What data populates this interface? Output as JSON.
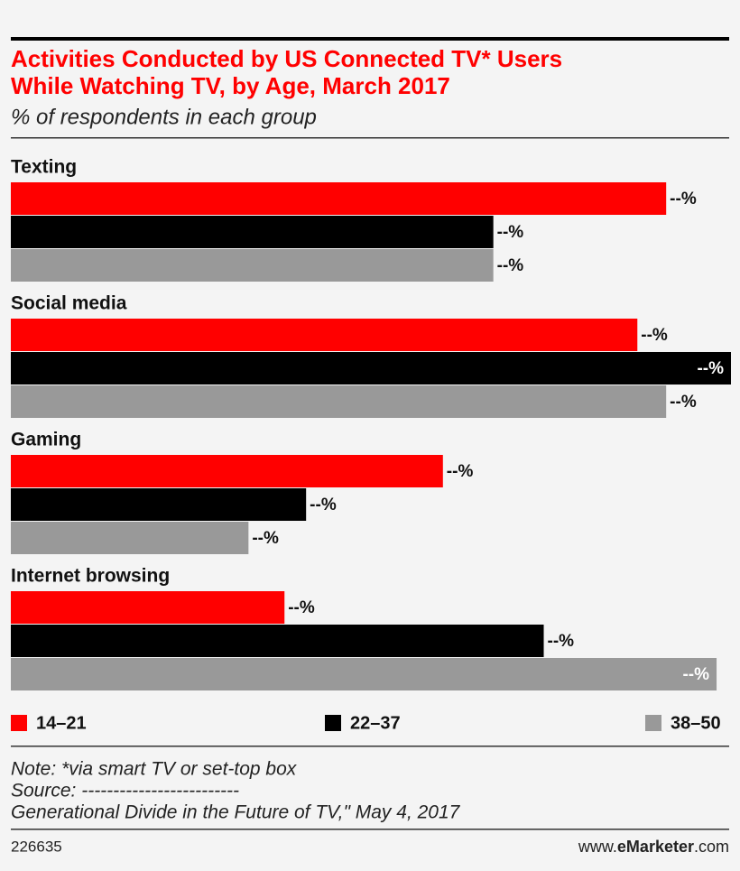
{
  "chart_data": {
    "type": "bar",
    "orientation": "horizontal",
    "title": [
      "Activities Conducted by US Connected TV* Users",
      "While Watching TV, by Age, March 2017"
    ],
    "subtitle": "% of respondents in each group",
    "categories": [
      "Texting",
      "Social media",
      "Gaming",
      "Internet browsing"
    ],
    "series": [
      {
        "name": "14–21",
        "color": "#ff0000",
        "values": [
          91,
          87,
          60,
          38
        ],
        "value_labels": [
          "--%",
          "--%",
          "--%",
          "--%"
        ]
      },
      {
        "name": "22–37",
        "color": "#000000",
        "values": [
          67,
          100,
          41,
          74
        ],
        "value_labels": [
          "--%",
          "--%",
          "--%",
          "--%"
        ]
      },
      {
        "name": "38–50",
        "color": "#999999",
        "values": [
          67,
          91,
          33,
          98
        ],
        "value_labels": [
          "--%",
          "--%",
          "--%",
          "--%"
        ]
      }
    ],
    "xlim": [
      0,
      100
    ],
    "note": [
      "Note: *via smart TV or set-top box",
      "Source: -------------------------",
      "Generational Divide in the Future of TV,\" May 4, 2017"
    ],
    "footer": {
      "id": "226635",
      "site": [
        "www.",
        "eMarketer",
        ".com"
      ]
    }
  }
}
